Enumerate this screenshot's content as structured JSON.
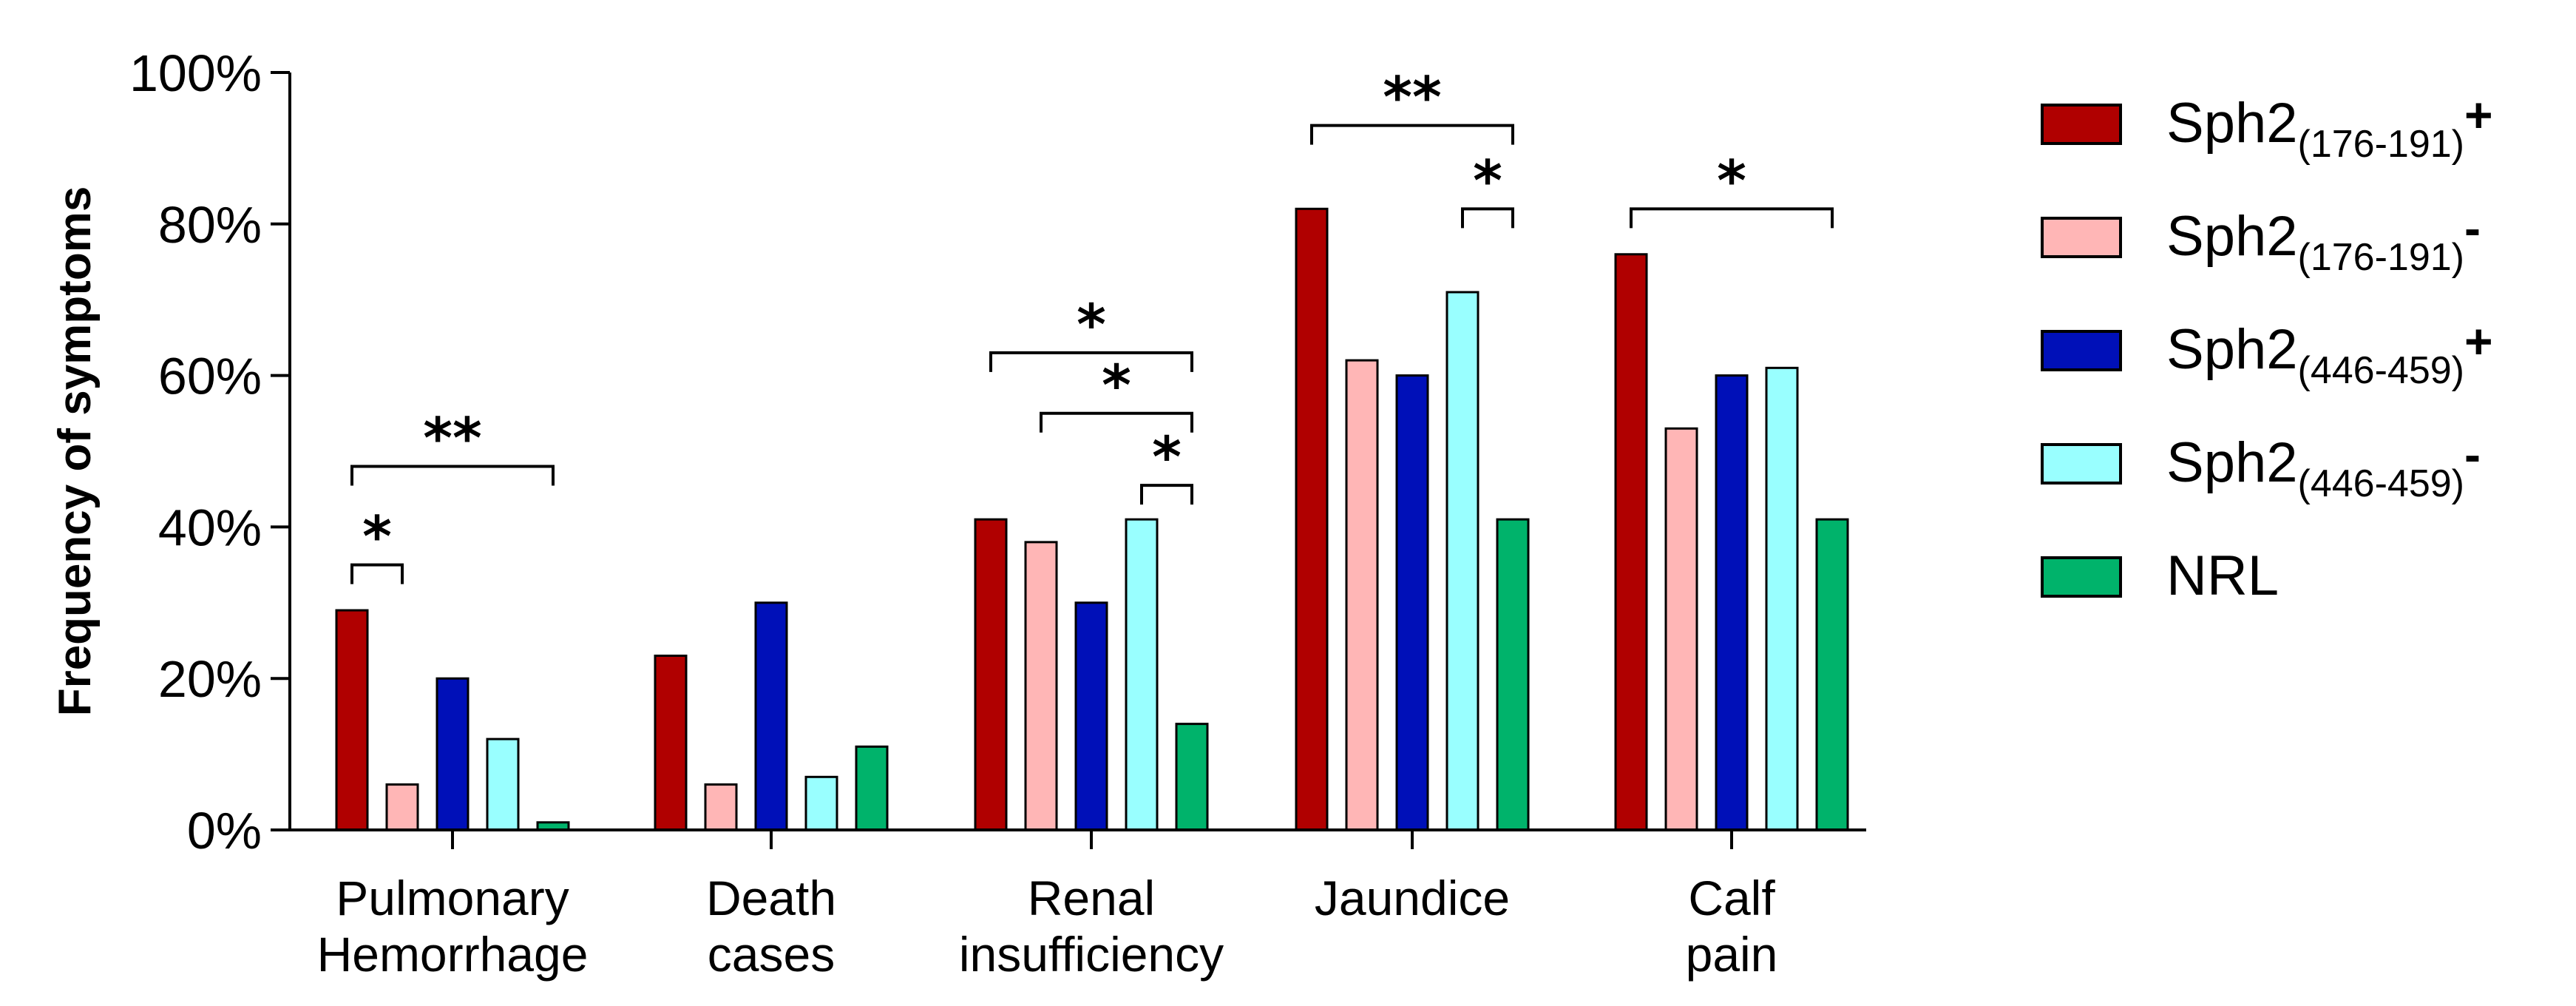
{
  "chart_data": {
    "type": "bar",
    "title": "",
    "xlabel": "",
    "ylabel": "Frequency of symptoms",
    "ylim": [
      0,
      100
    ],
    "yticks": [
      "0%",
      "20%",
      "40%",
      "60%",
      "80%",
      "100%"
    ],
    "grid": false,
    "legend_position": "right",
    "categories": [
      [
        "Pulmonary",
        "Hemorrhage"
      ],
      [
        "Death",
        "cases"
      ],
      [
        "Renal",
        "insufficiency"
      ],
      [
        "Jaundice"
      ],
      [
        "Calf",
        "pain"
      ]
    ],
    "series": [
      {
        "name": "Sph2",
        "sub": "(176-191)",
        "sign": "+",
        "color": "#B00000",
        "values": [
          29,
          23,
          41,
          82,
          76
        ]
      },
      {
        "name": "Sph2",
        "sub": "(176-191)",
        "sign": "-",
        "color": "#FFB6B6",
        "values": [
          6,
          6,
          38,
          62,
          53
        ]
      },
      {
        "name": "Sph2",
        "sub": "(446-459)",
        "sign": "+",
        "color": "#0010B8",
        "values": [
          20,
          30,
          30,
          60,
          60
        ]
      },
      {
        "name": "Sph2",
        "sub": "(446-459)",
        "sign": "-",
        "color": "#99FFFF",
        "values": [
          12,
          7,
          41,
          71,
          61
        ]
      },
      {
        "name": "NRL",
        "sub": "",
        "sign": "",
        "color": "#00B36B",
        "values": [
          1,
          11,
          14,
          41,
          41
        ]
      }
    ],
    "significance": [
      {
        "category": 0,
        "from": 0,
        "to": 1,
        "y": 35,
        "label": "*"
      },
      {
        "category": 0,
        "from": 0,
        "to": 4,
        "y": 48,
        "label": "**"
      },
      {
        "category": 2,
        "from": 0,
        "to": 4,
        "y": 63,
        "label": "*"
      },
      {
        "category": 2,
        "from": 1,
        "to": 4,
        "y": 55,
        "label": "*"
      },
      {
        "category": 2,
        "from": 3,
        "to": 4,
        "y": 45.5,
        "label": "*"
      },
      {
        "category": 3,
        "from": 0,
        "to": 4,
        "y": 93,
        "label": "**"
      },
      {
        "category": 3,
        "from": 3,
        "to": 4,
        "y": 82,
        "label": "*"
      },
      {
        "category": 4,
        "from": 0,
        "to": 4,
        "y": 82,
        "label": "*"
      }
    ]
  }
}
